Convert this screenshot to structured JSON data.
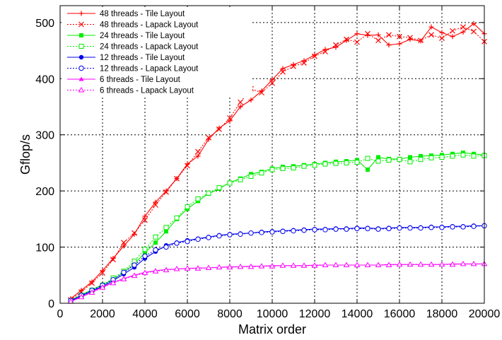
{
  "chart_data": {
    "type": "line",
    "title": "",
    "xlabel": "Matrix order",
    "ylabel": "Gflop/s",
    "xlim": [
      0,
      20000
    ],
    "ylim": [
      0,
      530
    ],
    "xticks": [
      0,
      2000,
      4000,
      6000,
      8000,
      10000,
      12000,
      14000,
      16000,
      18000,
      20000
    ],
    "yticks": [
      0,
      100,
      200,
      300,
      400,
      500
    ],
    "grid": true,
    "legend_position": "top-left",
    "x": [
      500,
      1000,
      1500,
      2000,
      2500,
      3000,
      3500,
      4000,
      4500,
      5000,
      5500,
      6000,
      6500,
      7000,
      7500,
      8000,
      8500,
      9000,
      9500,
      10000,
      10500,
      11000,
      11500,
      12000,
      12500,
      13000,
      13500,
      14000,
      14500,
      15000,
      15500,
      16000,
      16500,
      17000,
      17500,
      18000,
      18500,
      19000,
      19500,
      20000
    ],
    "series": [
      {
        "name": "48 threads - Tile Layout",
        "color": "#ff0000",
        "dash": "solid",
        "marker": "plus",
        "values": [
          8,
          23,
          38,
          58,
          80,
          102,
          123,
          155,
          180,
          200,
          222,
          248,
          262,
          292,
          312,
          325,
          350,
          362,
          378,
          398,
          418,
          425,
          432,
          442,
          452,
          456,
          468,
          480,
          477,
          478,
          460,
          462,
          470,
          467,
          492,
          482,
          475,
          483,
          498,
          480
        ]
      },
      {
        "name": "48 threads - Lapack Layout",
        "color": "#ff0000",
        "dash": "dotted",
        "marker": "x",
        "values": [
          6,
          20,
          36,
          54,
          78,
          108,
          125,
          148,
          175,
          198,
          222,
          245,
          270,
          295,
          310,
          330,
          358,
          382,
          375,
          392,
          412,
          422,
          428,
          440,
          448,
          460,
          470,
          465,
          480,
          468,
          478,
          475,
          473,
          468,
          478,
          472,
          485,
          492,
          484,
          466
        ]
      },
      {
        "name": "24 threads - Tile Layout",
        "color": "#00ee00",
        "dash": "solid",
        "marker": "filled-square",
        "values": [
          5,
          15,
          24,
          33,
          42,
          55,
          70,
          90,
          108,
          128,
          150,
          168,
          182,
          195,
          204,
          215,
          222,
          230,
          234,
          240,
          243,
          244,
          246,
          248,
          250,
          252,
          253,
          255,
          238,
          260,
          257,
          257,
          260,
          262,
          263,
          264,
          266,
          268,
          266,
          264
        ]
      },
      {
        "name": "24 threads - Lapack Layout",
        "color": "#00ee00",
        "dash": "dotted",
        "marker": "open-square",
        "values": [
          4,
          14,
          23,
          32,
          45,
          57,
          75,
          96,
          118,
          135,
          152,
          172,
          186,
          196,
          206,
          214,
          220,
          226,
          232,
          238,
          240,
          241,
          244,
          246,
          248,
          249,
          250,
          251,
          258,
          253,
          255,
          256,
          252,
          256,
          259,
          260,
          262,
          264,
          262,
          263
        ]
      },
      {
        "name": "12 threads - Tile Layout",
        "color": "#0000ee",
        "dash": "solid",
        "marker": "filled-circle",
        "values": [
          4,
          13,
          22,
          30,
          40,
          52,
          64,
          80,
          92,
          103,
          108,
          112,
          115,
          118,
          121,
          123,
          124,
          125,
          127,
          128,
          129,
          130,
          131,
          132,
          132,
          133,
          133,
          134,
          134,
          133,
          134,
          135,
          135,
          135,
          136,
          136,
          137,
          137,
          138,
          138
        ]
      },
      {
        "name": "12 threads - Lapack Layout",
        "color": "#0000ee",
        "dash": "dotted",
        "marker": "open-circle",
        "values": [
          5,
          14,
          23,
          32,
          42,
          55,
          68,
          84,
          95,
          100,
          107,
          110,
          114,
          117,
          120,
          122,
          123,
          125,
          126,
          127,
          128,
          129,
          130,
          131,
          131,
          132,
          132,
          133,
          133,
          132,
          133,
          134,
          134,
          134,
          135,
          135,
          136,
          136,
          137,
          138
        ]
      },
      {
        "name": "6 threads - Tile Layout",
        "color": "#ff00ff",
        "dash": "solid",
        "marker": "filled-triangle",
        "values": [
          3,
          11,
          20,
          29,
          37,
          44,
          50,
          55,
          58,
          60,
          61,
          62,
          63,
          63,
          64,
          65,
          65,
          66,
          66,
          67,
          67,
          67,
          67,
          68,
          68,
          68,
          68,
          68,
          68,
          68,
          69,
          69,
          69,
          69,
          69,
          69,
          70,
          70,
          70,
          70
        ]
      },
      {
        "name": "6 threads - Lapack Layout",
        "color": "#ff00ff",
        "dash": "dotted",
        "marker": "open-triangle",
        "values": [
          3,
          11,
          19,
          28,
          36,
          43,
          49,
          54,
          57,
          59,
          61,
          62,
          62,
          63,
          64,
          64,
          65,
          65,
          66,
          66,
          67,
          67,
          67,
          67,
          68,
          68,
          68,
          68,
          68,
          68,
          68,
          69,
          69,
          69,
          69,
          69,
          69,
          70,
          70,
          70
        ]
      }
    ]
  }
}
